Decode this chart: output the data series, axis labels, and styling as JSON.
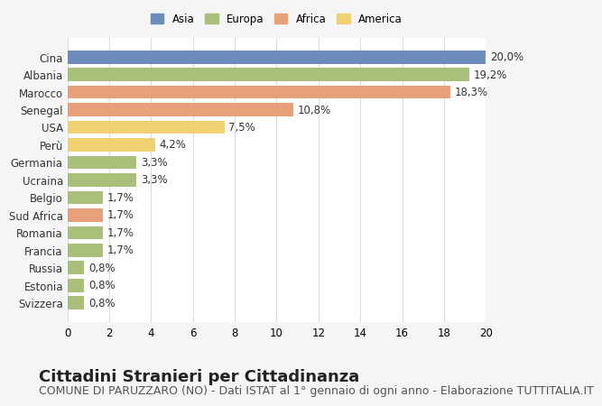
{
  "categories": [
    "Cina",
    "Albania",
    "Marocco",
    "Senegal",
    "USA",
    "Perù",
    "Germania",
    "Ucraina",
    "Belgio",
    "Sud Africa",
    "Romania",
    "Francia",
    "Russia",
    "Estonia",
    "Svizzera"
  ],
  "values": [
    20.0,
    19.2,
    18.3,
    10.8,
    7.5,
    4.2,
    3.3,
    3.3,
    1.7,
    1.7,
    1.7,
    1.7,
    0.8,
    0.8,
    0.8
  ],
  "labels": [
    "20,0%",
    "19,2%",
    "18,3%",
    "10,8%",
    "7,5%",
    "4,2%",
    "3,3%",
    "3,3%",
    "1,7%",
    "1,7%",
    "1,7%",
    "1,7%",
    "0,8%",
    "0,8%",
    "0,8%"
  ],
  "continents": [
    "Asia",
    "Europa",
    "Africa",
    "Africa",
    "America",
    "America",
    "Europa",
    "Europa",
    "Europa",
    "Africa",
    "Europa",
    "Europa",
    "Europa",
    "Europa",
    "Europa"
  ],
  "colors": {
    "Asia": "#6b8cba",
    "Europa": "#a8c07a",
    "Africa": "#e8a07a",
    "America": "#f0d070"
  },
  "legend_order": [
    "Asia",
    "Europa",
    "Africa",
    "America"
  ],
  "title": "Cittadini Stranieri per Cittadinanza",
  "subtitle": "COMUNE DI PARUZZARO (NO) - Dati ISTAT al 1° gennaio di ogni anno - Elaborazione TUTTITALIA.IT",
  "xlim": [
    0,
    20
  ],
  "xticks": [
    0,
    2,
    4,
    6,
    8,
    10,
    12,
    14,
    16,
    18,
    20
  ],
  "background_color": "#f5f5f5",
  "plot_background": "#ffffff",
  "grid_color": "#dddddd",
  "title_fontsize": 13,
  "subtitle_fontsize": 9,
  "label_fontsize": 8.5,
  "tick_fontsize": 8.5
}
